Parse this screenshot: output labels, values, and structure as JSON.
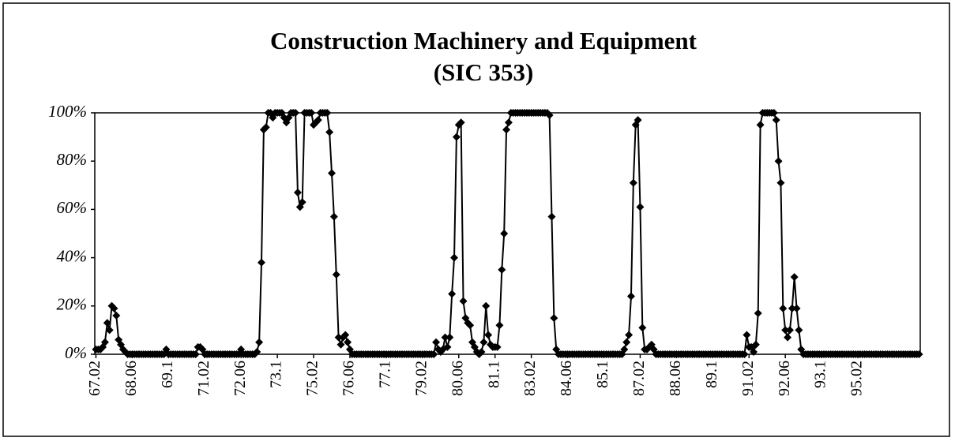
{
  "chart_data": {
    "type": "line",
    "title": "Construction Machinery and Equipment",
    "subtitle": "(SIC 353)",
    "categories": [
      "67.02",
      null,
      null,
      null,
      null,
      null,
      null,
      null,
      null,
      null,
      null,
      null,
      null,
      null,
      null,
      null,
      "68.06",
      null,
      null,
      null,
      null,
      null,
      null,
      null,
      null,
      null,
      null,
      null,
      null,
      null,
      null,
      null,
      "69.1",
      null,
      null,
      null,
      null,
      null,
      null,
      null,
      null,
      null,
      null,
      null,
      null,
      null,
      null,
      null,
      "71.02",
      null,
      null,
      null,
      null,
      null,
      null,
      null,
      null,
      null,
      null,
      null,
      null,
      null,
      null,
      null,
      "72.06",
      null,
      null,
      null,
      null,
      null,
      null,
      null,
      null,
      null,
      null,
      null,
      null,
      null,
      null,
      null,
      "73.1",
      null,
      null,
      null,
      null,
      null,
      null,
      null,
      null,
      null,
      null,
      null,
      null,
      null,
      null,
      null,
      "75.02",
      null,
      null,
      null,
      null,
      null,
      null,
      null,
      null,
      null,
      null,
      null,
      null,
      null,
      null,
      null,
      "76.06",
      null,
      null,
      null,
      null,
      null,
      null,
      null,
      null,
      null,
      null,
      null,
      null,
      null,
      null,
      null,
      "77.1",
      null,
      null,
      null,
      null,
      null,
      null,
      null,
      null,
      null,
      null,
      null,
      null,
      null,
      null,
      null,
      "79.02",
      null,
      null,
      null,
      null,
      null,
      null,
      null,
      null,
      null,
      null,
      null,
      null,
      null,
      null,
      null,
      "80.06",
      null,
      null,
      null,
      null,
      null,
      null,
      null,
      null,
      null,
      null,
      null,
      null,
      null,
      null,
      null,
      "81.1",
      null,
      null,
      null,
      null,
      null,
      null,
      null,
      null,
      null,
      null,
      null,
      null,
      null,
      null,
      null,
      "83.02",
      null,
      null,
      null,
      null,
      null,
      null,
      null,
      null,
      null,
      null,
      null,
      null,
      null,
      null,
      null,
      "84.06",
      null,
      null,
      null,
      null,
      null,
      null,
      null,
      null,
      null,
      null,
      null,
      null,
      null,
      null,
      null,
      "85.1",
      null,
      null,
      null,
      null,
      null,
      null,
      null,
      null,
      null,
      null,
      null,
      null,
      null,
      null,
      null,
      "87.02",
      null,
      null,
      null,
      null,
      null,
      null,
      null,
      null,
      null,
      null,
      null,
      null,
      null,
      null,
      null,
      "88.06",
      null,
      null,
      null,
      null,
      null,
      null,
      null,
      null,
      null,
      null,
      null,
      null,
      null,
      null,
      null,
      "89.1",
      null,
      null,
      null,
      null,
      null,
      null,
      null,
      null,
      null,
      null,
      null,
      null,
      null,
      null,
      null,
      "91.02",
      null,
      null,
      null,
      null,
      null,
      null,
      null,
      null,
      null,
      null,
      null,
      null,
      null,
      null,
      null,
      "92.06",
      null,
      null,
      null,
      null,
      null,
      null,
      null,
      null,
      null,
      null,
      null,
      null,
      null,
      null,
      null,
      "93.1",
      null,
      null,
      null,
      null,
      null,
      null,
      null,
      null,
      null,
      null,
      null,
      null,
      null,
      null,
      null,
      "95.02",
      null,
      null,
      null,
      null,
      null,
      null,
      null,
      null,
      null,
      null,
      null,
      null,
      null,
      null,
      null,
      null,
      null,
      null,
      null,
      null,
      null,
      null,
      null,
      null,
      null,
      null,
      null
    ],
    "series": [
      {
        "color": "#000000",
        "values": [
          2,
          2,
          2,
          3,
          5,
          13,
          10,
          20,
          19,
          16,
          6,
          4,
          2,
          1,
          0,
          0,
          0,
          0,
          0,
          0,
          0,
          0,
          0,
          0,
          0,
          0,
          0,
          0,
          0,
          0,
          0,
          2,
          0,
          0,
          0,
          0,
          0,
          0,
          0,
          0,
          0,
          0,
          0,
          0,
          0,
          3,
          3,
          2,
          0,
          0,
          0,
          0,
          0,
          0,
          0,
          0,
          0,
          0,
          0,
          0,
          0,
          0,
          0,
          0,
          2,
          0,
          0,
          0,
          0,
          0,
          0,
          1,
          5,
          38,
          93,
          94,
          100,
          100,
          98,
          100,
          100,
          100,
          100,
          98,
          96,
          98,
          100,
          100,
          100,
          67,
          61,
          63,
          100,
          100,
          100,
          100,
          95,
          96,
          97,
          100,
          100,
          100,
          100,
          92,
          75,
          57,
          33,
          7,
          4,
          7,
          8,
          5,
          2,
          0,
          0,
          0,
          0,
          0,
          0,
          0,
          0,
          0,
          0,
          0,
          0,
          0,
          0,
          0,
          0,
          0,
          0,
          0,
          0,
          0,
          0,
          0,
          0,
          0,
          0,
          0,
          0,
          0,
          0,
          0,
          0,
          0,
          0,
          0,
          0,
          0,
          5,
          2,
          1,
          2,
          7,
          3,
          7,
          25,
          40,
          90,
          95,
          96,
          22,
          15,
          13,
          12,
          5,
          3,
          1,
          0,
          1,
          5,
          20,
          8,
          4,
          3,
          3,
          3,
          12,
          35,
          50,
          93,
          96,
          100,
          100,
          100,
          100,
          100,
          100,
          100,
          100,
          100,
          100,
          100,
          100,
          100,
          100,
          100,
          100,
          100,
          99,
          57,
          15,
          2,
          0,
          0,
          0,
          0,
          0,
          0,
          0,
          0,
          0,
          0,
          0,
          0,
          0,
          0,
          0,
          0,
          0,
          0,
          0,
          0,
          0,
          0,
          0,
          0,
          0,
          0,
          0,
          0,
          0,
          2,
          5,
          8,
          24,
          71,
          95,
          97,
          61,
          11,
          2,
          2,
          3,
          4,
          2,
          0,
          0,
          0,
          0,
          0,
          0,
          0,
          0,
          0,
          0,
          0,
          0,
          0,
          0,
          0,
          0,
          0,
          0,
          0,
          0,
          0,
          0,
          0,
          0,
          0,
          0,
          0,
          0,
          0,
          0,
          0,
          0,
          0,
          0,
          0,
          0,
          0,
          0,
          0,
          0,
          8,
          3,
          3,
          1,
          4,
          17,
          95,
          100,
          100,
          100,
          100,
          100,
          100,
          97,
          80,
          71,
          19,
          10,
          7,
          10,
          19,
          32,
          19,
          10,
          2,
          0,
          0,
          0,
          0,
          0,
          0,
          0,
          0,
          0,
          0,
          0,
          0,
          0,
          0,
          0,
          0,
          0,
          0,
          0,
          0,
          0,
          0,
          0,
          0,
          0,
          0,
          0,
          0,
          0,
          0,
          0,
          0,
          0,
          0,
          0,
          0,
          0,
          0,
          0,
          0,
          0,
          0,
          0,
          0,
          0,
          0,
          0,
          0,
          0,
          0,
          0,
          0
        ]
      }
    ],
    "ylim": [
      0,
      100
    ],
    "yticks": [
      {
        "value": 0,
        "label": "0%"
      },
      {
        "value": 20,
        "label": "20%"
      },
      {
        "value": 40,
        "label": "40%"
      },
      {
        "value": 60,
        "label": "60%"
      },
      {
        "value": 80,
        "label": "80%"
      },
      {
        "value": 100,
        "label": "100%"
      }
    ]
  }
}
